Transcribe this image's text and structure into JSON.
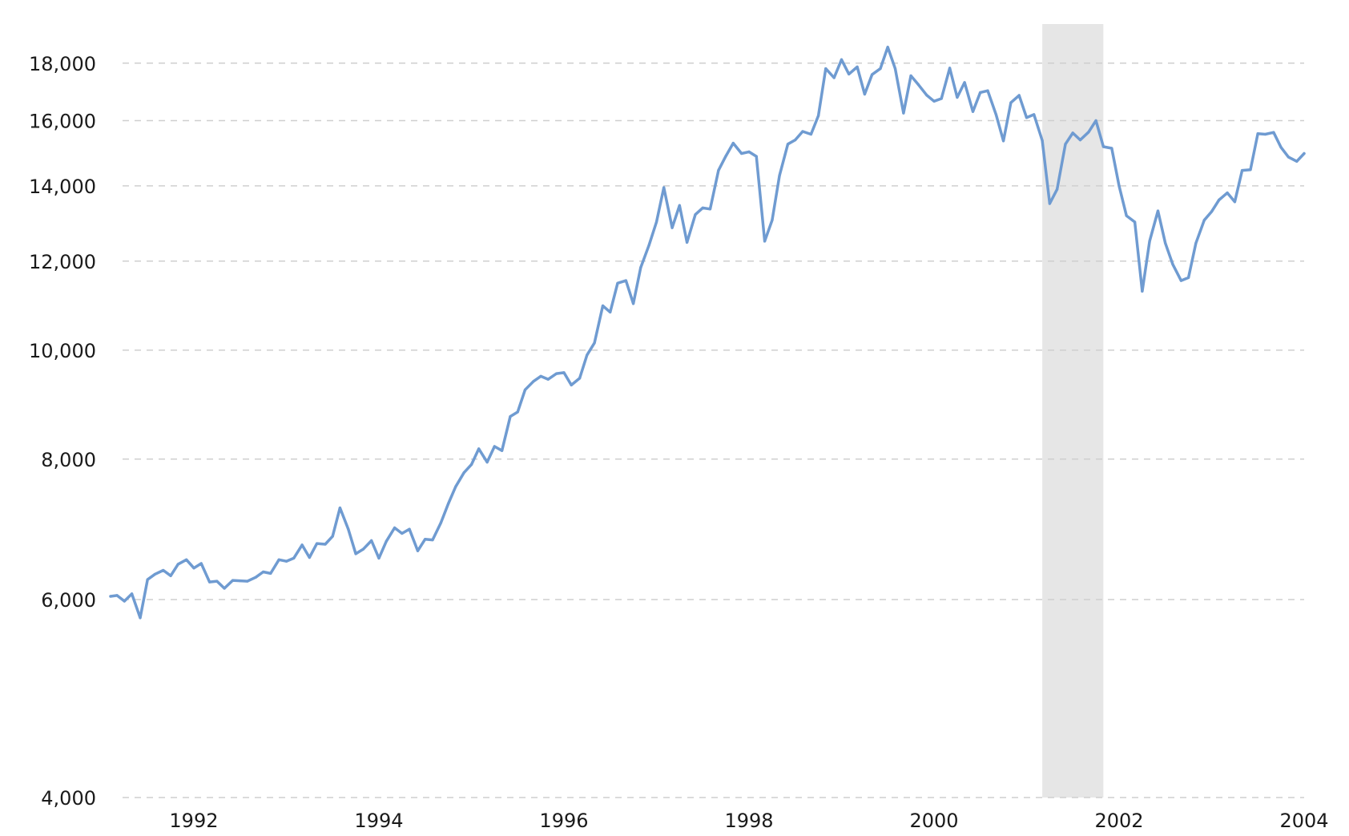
{
  "chart_data": {
    "type": "line",
    "title": "",
    "xlabel": "",
    "ylabel": "",
    "y_scale": "log",
    "ylim": [
      4000,
      19500
    ],
    "xlim": [
      1991.1,
      2004.0
    ],
    "grid": true,
    "y_ticks": [
      {
        "value": 4000,
        "label": "4,000"
      },
      {
        "value": 6000,
        "label": "6,000"
      },
      {
        "value": 8000,
        "label": "8,000"
      },
      {
        "value": 10000,
        "label": "10,000"
      },
      {
        "value": 12000,
        "label": "12,000"
      },
      {
        "value": 14000,
        "label": "14,000"
      },
      {
        "value": 16000,
        "label": "16,000"
      },
      {
        "value": 18000,
        "label": "18,000"
      }
    ],
    "x_ticks": [
      {
        "value": 1992,
        "label": "1992"
      },
      {
        "value": 1994,
        "label": "1994"
      },
      {
        "value": 1996,
        "label": "1996"
      },
      {
        "value": 1998,
        "label": "1998"
      },
      {
        "value": 2000,
        "label": "2000"
      },
      {
        "value": 2002,
        "label": "2002"
      },
      {
        "value": 2004,
        "label": "2004"
      }
    ],
    "shaded_regions": [
      {
        "start": 2001.17,
        "end": 2001.83,
        "color": "#e6e6e6"
      }
    ],
    "series": [
      {
        "color": "#6f9bd1",
        "points": [
          [
            1991.1,
            6040
          ],
          [
            1991.17,
            6050
          ],
          [
            1991.25,
            5980
          ],
          [
            1991.33,
            6070
          ],
          [
            1991.42,
            5780
          ],
          [
            1991.5,
            6250
          ],
          [
            1991.58,
            6320
          ],
          [
            1991.67,
            6370
          ],
          [
            1991.75,
            6300
          ],
          [
            1991.83,
            6450
          ],
          [
            1991.92,
            6510
          ],
          [
            1992.0,
            6400
          ],
          [
            1992.08,
            6460
          ],
          [
            1992.17,
            6220
          ],
          [
            1992.25,
            6230
          ],
          [
            1992.33,
            6140
          ],
          [
            1992.42,
            6240
          ],
          [
            1992.5,
            6235
          ],
          [
            1992.58,
            6230
          ],
          [
            1992.67,
            6280
          ],
          [
            1992.75,
            6350
          ],
          [
            1992.83,
            6330
          ],
          [
            1992.92,
            6510
          ],
          [
            1993.0,
            6490
          ],
          [
            1993.08,
            6530
          ],
          [
            1993.17,
            6710
          ],
          [
            1993.25,
            6540
          ],
          [
            1993.33,
            6730
          ],
          [
            1993.42,
            6720
          ],
          [
            1993.5,
            6830
          ],
          [
            1993.58,
            7240
          ],
          [
            1993.67,
            6930
          ],
          [
            1993.75,
            6590
          ],
          [
            1993.83,
            6650
          ],
          [
            1993.92,
            6770
          ],
          [
            1994.0,
            6530
          ],
          [
            1994.08,
            6760
          ],
          [
            1994.17,
            6950
          ],
          [
            1994.25,
            6870
          ],
          [
            1994.33,
            6930
          ],
          [
            1994.42,
            6630
          ],
          [
            1994.5,
            6790
          ],
          [
            1994.58,
            6780
          ],
          [
            1994.67,
            7020
          ],
          [
            1994.75,
            7300
          ],
          [
            1994.83,
            7560
          ],
          [
            1994.92,
            7780
          ],
          [
            1995.0,
            7910
          ],
          [
            1995.08,
            8170
          ],
          [
            1995.17,
            7950
          ],
          [
            1995.25,
            8210
          ],
          [
            1995.33,
            8140
          ],
          [
            1995.42,
            8730
          ],
          [
            1995.5,
            8810
          ],
          [
            1995.58,
            9220
          ],
          [
            1995.67,
            9380
          ],
          [
            1995.75,
            9480
          ],
          [
            1995.83,
            9420
          ],
          [
            1995.92,
            9530
          ],
          [
            1996.0,
            9550
          ],
          [
            1996.08,
            9310
          ],
          [
            1996.17,
            9440
          ],
          [
            1996.25,
            9900
          ],
          [
            1996.33,
            10150
          ],
          [
            1996.42,
            10950
          ],
          [
            1996.5,
            10810
          ],
          [
            1996.58,
            11470
          ],
          [
            1996.67,
            11530
          ],
          [
            1996.75,
            11000
          ],
          [
            1996.83,
            11840
          ],
          [
            1996.92,
            12400
          ],
          [
            1997.0,
            13000
          ],
          [
            1997.08,
            13950
          ],
          [
            1997.17,
            12850
          ],
          [
            1997.25,
            13450
          ],
          [
            1997.33,
            12470
          ],
          [
            1997.42,
            13200
          ],
          [
            1997.5,
            13380
          ],
          [
            1997.58,
            13350
          ],
          [
            1997.67,
            14450
          ],
          [
            1997.75,
            14880
          ],
          [
            1997.83,
            15280
          ],
          [
            1997.92,
            14960
          ],
          [
            1998.0,
            15010
          ],
          [
            1998.08,
            14870
          ],
          [
            1998.17,
            12500
          ],
          [
            1998.25,
            13050
          ],
          [
            1998.33,
            14300
          ],
          [
            1998.42,
            15250
          ],
          [
            1998.5,
            15380
          ],
          [
            1998.58,
            15650
          ],
          [
            1998.67,
            15560
          ],
          [
            1998.75,
            16160
          ],
          [
            1998.83,
            17800
          ],
          [
            1998.92,
            17470
          ],
          [
            1999.0,
            18130
          ],
          [
            1999.08,
            17600
          ],
          [
            1999.17,
            17860
          ],
          [
            1999.25,
            16890
          ],
          [
            1999.33,
            17580
          ],
          [
            1999.42,
            17800
          ],
          [
            1999.5,
            18600
          ],
          [
            1999.58,
            17800
          ],
          [
            1999.67,
            16250
          ],
          [
            1999.75,
            17540
          ],
          [
            1999.83,
            17230
          ],
          [
            1999.92,
            16860
          ],
          [
            2000.0,
            16650
          ],
          [
            2000.08,
            16740
          ],
          [
            2000.17,
            17820
          ],
          [
            2000.25,
            16780
          ],
          [
            2000.33,
            17300
          ],
          [
            2000.42,
            16300
          ],
          [
            2000.5,
            16950
          ],
          [
            2000.58,
            17010
          ],
          [
            2000.67,
            16200
          ],
          [
            2000.75,
            15350
          ],
          [
            2000.83,
            16600
          ],
          [
            2000.92,
            16850
          ],
          [
            2001.0,
            16100
          ],
          [
            2001.08,
            16200
          ],
          [
            2001.17,
            15360
          ],
          [
            2001.25,
            13500
          ],
          [
            2001.33,
            13900
          ],
          [
            2001.42,
            15250
          ],
          [
            2001.5,
            15600
          ],
          [
            2001.58,
            15380
          ],
          [
            2001.67,
            15630
          ],
          [
            2001.75,
            16000
          ],
          [
            2001.83,
            15170
          ],
          [
            2001.92,
            15120
          ],
          [
            2002.0,
            14000
          ],
          [
            2002.08,
            13170
          ],
          [
            2002.17,
            13000
          ],
          [
            2002.25,
            11280
          ],
          [
            2002.33,
            12500
          ],
          [
            2002.42,
            13300
          ],
          [
            2002.5,
            12450
          ],
          [
            2002.58,
            11920
          ],
          [
            2002.67,
            11530
          ],
          [
            2002.75,
            11600
          ],
          [
            2002.83,
            12450
          ],
          [
            2002.92,
            13050
          ],
          [
            2003.0,
            13280
          ],
          [
            2003.08,
            13600
          ],
          [
            2003.17,
            13800
          ],
          [
            2003.25,
            13550
          ],
          [
            2003.33,
            14450
          ],
          [
            2003.42,
            14470
          ],
          [
            2003.5,
            15580
          ],
          [
            2003.58,
            15560
          ],
          [
            2003.67,
            15620
          ],
          [
            2003.75,
            15150
          ],
          [
            2003.83,
            14850
          ],
          [
            2003.92,
            14720
          ],
          [
            2004.0,
            14960
          ]
        ]
      }
    ]
  }
}
